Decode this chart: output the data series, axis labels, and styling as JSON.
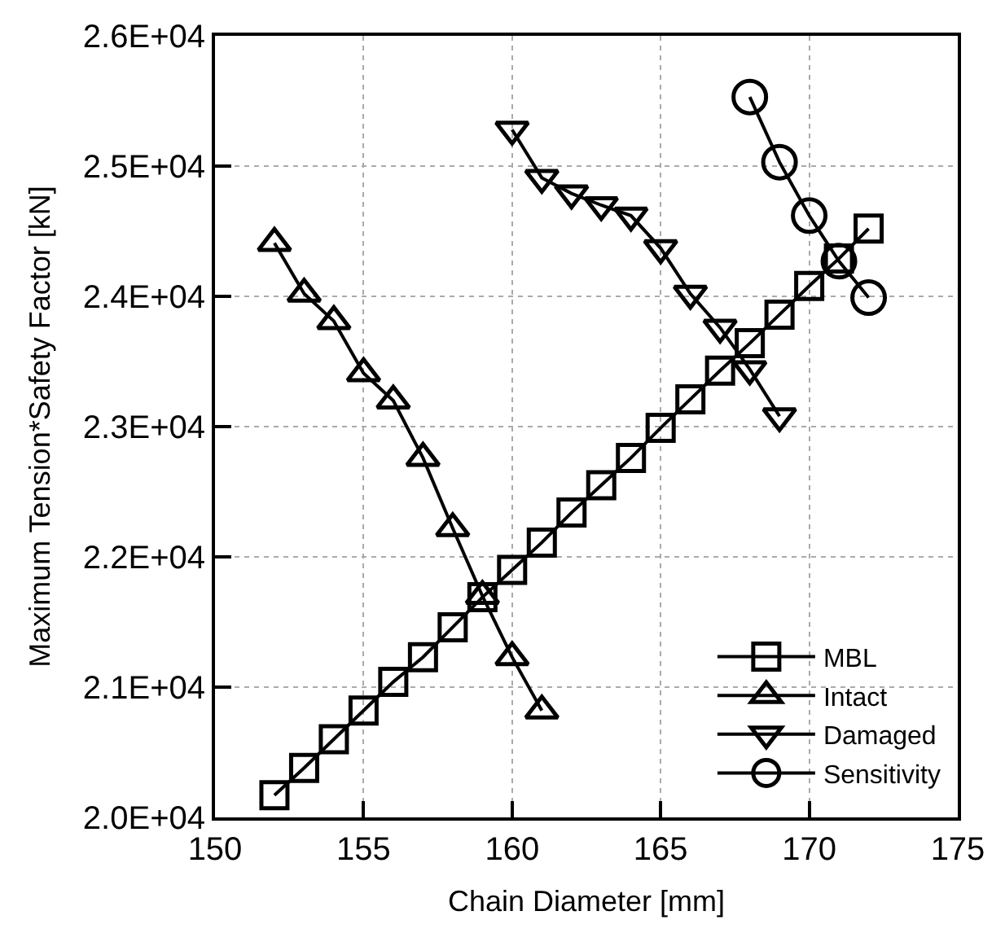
{
  "chart_data": {
    "type": "line",
    "xlabel": "Chain Diameter [mm]",
    "ylabel": "Maximum Tension*Safety Factor [kN]",
    "xlim": [
      150,
      175
    ],
    "xticks": [
      150,
      155,
      160,
      165,
      170,
      175
    ],
    "ylim": [
      20000,
      26000
    ],
    "yticks": [
      {
        "value": 20000,
        "label": "2.0E+04"
      },
      {
        "value": 21000,
        "label": "2.1E+04"
      },
      {
        "value": 22000,
        "label": "2.2E+04"
      },
      {
        "value": 23000,
        "label": "2.3E+04"
      },
      {
        "value": 24000,
        "label": "2.4E+04"
      },
      {
        "value": 25000,
        "label": "2.5E+04"
      },
      {
        "value": 26000,
        "label": "2.6E+04"
      }
    ],
    "grid": true,
    "legend": "bottom right",
    "line_style": "solid",
    "series": [
      {
        "name": "MBL",
        "color": "#000000",
        "marker": "square",
        "x": [
          152,
          153,
          154,
          155,
          156,
          157,
          158,
          159,
          160,
          161,
          162,
          163,
          164,
          165,
          166,
          167,
          168,
          169,
          170,
          171,
          172
        ],
        "values": [
          20170,
          20380,
          20600,
          20820,
          21040,
          21230,
          21460,
          21690,
          21900,
          22110,
          22340,
          22550,
          22760,
          22990,
          23210,
          23430,
          23640,
          23860,
          24080,
          24290,
          24520
        ]
      },
      {
        "name": "Intact",
        "color": "#000000",
        "marker": "triangle",
        "x": [
          152,
          153,
          154,
          155,
          156,
          157,
          158,
          159,
          160,
          161
        ],
        "values": [
          24410,
          24020,
          23810,
          23410,
          23200,
          22760,
          22220,
          21700,
          21230,
          20820
        ]
      },
      {
        "name": "Damaged",
        "color": "#000000",
        "marker": "triangle-down",
        "x": [
          160,
          161,
          162,
          163,
          164,
          165,
          166,
          167,
          168,
          169
        ],
        "values": [
          25280,
          24910,
          24790,
          24700,
          24620,
          24370,
          24020,
          23760,
          23440,
          23080
        ]
      },
      {
        "name": "Sensitivity",
        "color": "#000000",
        "marker": "circle",
        "x": [
          168,
          169,
          170,
          171,
          172
        ],
        "values": [
          25530,
          25030,
          24620,
          24270,
          23990
        ]
      }
    ]
  }
}
